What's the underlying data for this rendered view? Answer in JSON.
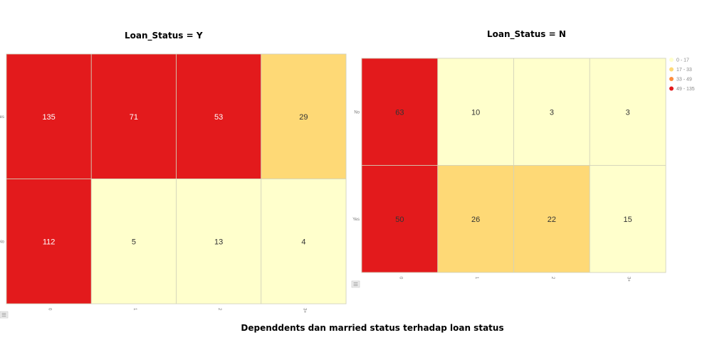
{
  "titles": {
    "left": "Loan_Status = Y",
    "right": "Loan_Status = N",
    "caption": "Dependdents dan married status terhadap loan status"
  },
  "chart_data": [
    {
      "type": "heatmap",
      "title": "Loan_Status = Y",
      "x_categories": [
        "0",
        "1",
        "2",
        "3+"
      ],
      "y_categories": [
        "Yes",
        "No"
      ],
      "values": [
        [
          135,
          71,
          53,
          29
        ],
        [
          112,
          5,
          13,
          4
        ]
      ]
    },
    {
      "type": "heatmap",
      "title": "Loan_Status = N",
      "x_categories": [
        "0",
        "1",
        "2",
        "3+"
      ],
      "y_categories": [
        "No",
        "Yes"
      ],
      "values": [
        [
          63,
          10,
          3,
          3
        ],
        [
          50,
          26,
          22,
          15
        ]
      ]
    }
  ],
  "legend": [
    {
      "label": "0 - 17",
      "color": "#ffffcc",
      "min": 0,
      "max": 17
    },
    {
      "label": "17 - 33",
      "color": "#fed976",
      "min": 17,
      "max": 33
    },
    {
      "label": "33 - 49",
      "color": "#fd8d3c",
      "min": 33,
      "max": 49
    },
    {
      "label": "49 - 135",
      "color": "#e31a1c",
      "min": 49,
      "max": 135
    }
  ],
  "icons": [
    "list-icon",
    "list-icon"
  ]
}
